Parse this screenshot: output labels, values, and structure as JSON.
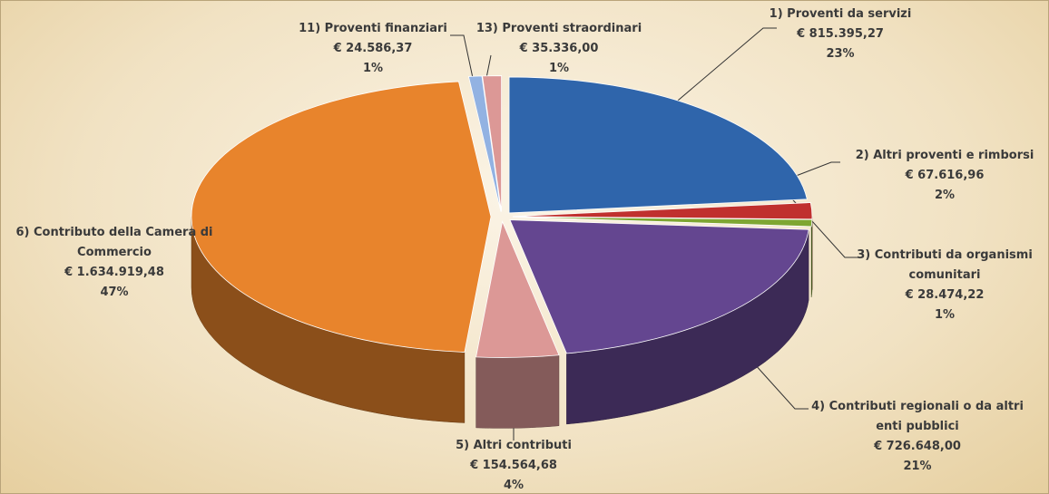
{
  "chart_data": {
    "type": "pie3d",
    "categories": [
      "1) Proventi da servizi",
      "2) Altri proventi e rimborsi",
      "3) Contributi da organismi comunitari",
      "4) Contributi regionali  o da altri enti pubblici",
      "5) Altri contributi",
      "6) Contributo della Camera di Commercio",
      "11) Proventi finanziari",
      "13) Proventi straordinari"
    ],
    "values": [
      815395.27,
      67616.96,
      28474.22,
      726648.0,
      154564.68,
      1634919.48,
      24586.37,
      35336.0
    ],
    "value_labels": [
      "€ 815.395,27",
      "€ 67.616,96",
      "€ 28.474,22",
      "€ 726.648,00",
      "€ 154.564,68",
      "€ 1.634.919,48",
      "€ 24.586,37",
      "€ 35.336,00"
    ],
    "share_labels": [
      "23%",
      "2%",
      "1%",
      "21%",
      "4%",
      "47%",
      "1%",
      "1%"
    ],
    "colors": [
      "#2f65ab",
      "#c0302e",
      "#7ea632",
      "#644690",
      "#dc9896",
      "#e8842c",
      "#92b2e2",
      "#dc9896"
    ]
  }
}
